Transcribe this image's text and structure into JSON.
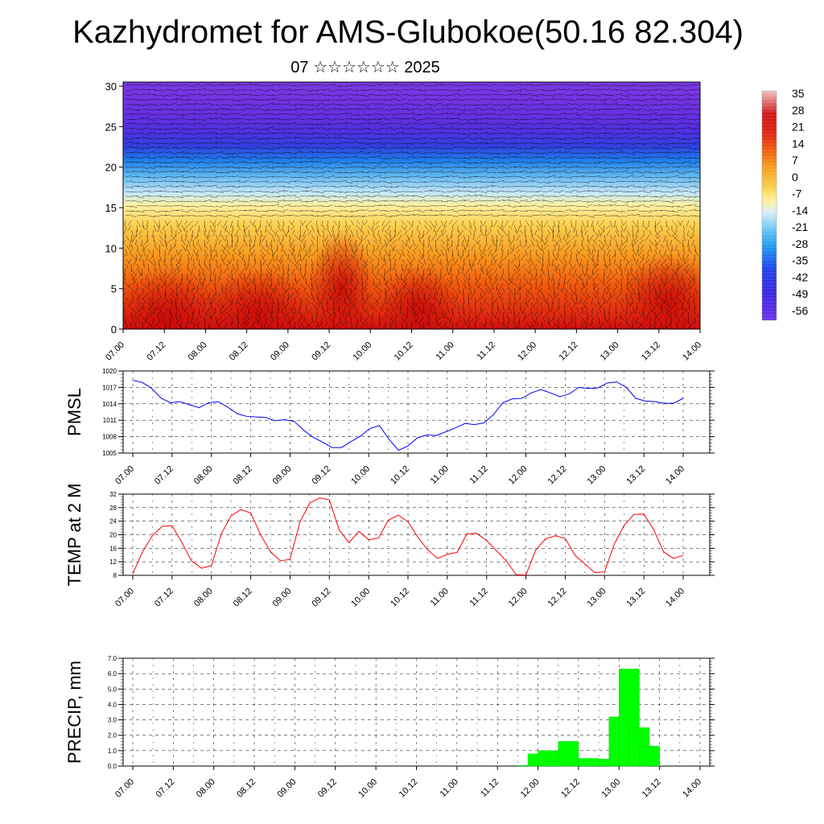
{
  "title": "Kazhydromet for AMS-Glubokoe(50.16 82.304)",
  "subtitle": "07 ☆☆☆☆☆☆ 2025",
  "chart_data": [
    {
      "type": "heatmap",
      "name": "Temperature cross-section with wind barbs",
      "xlabel": "",
      "ylabel": "",
      "x_tick_labels": [
        "07.00",
        "07.12",
        "08.00",
        "08.12",
        "09.00",
        "09.12",
        "10.00",
        "10.12",
        "11.00",
        "11.12",
        "12.00",
        "12.12",
        "13.00",
        "13.12",
        "14.00"
      ],
      "y_ticks": [
        0,
        5,
        10,
        15,
        20,
        25,
        30
      ],
      "ylim": [
        0,
        30.5
      ],
      "colorbar_labels": [
        "35",
        "28",
        "21",
        "14",
        "7",
        "0",
        "-7",
        "-14",
        "-21",
        "-28",
        "-35",
        "-42",
        "-49",
        "-56"
      ]
    },
    {
      "type": "line",
      "ylabel": "PMSL",
      "ylim": [
        1005,
        1020
      ],
      "y_ticks": [
        "1005",
        "1008",
        "1011",
        "1014",
        "1017",
        "1020"
      ],
      "x_tick_labels": [
        "07.00",
        "07.12",
        "08.00",
        "08.12",
        "09.00",
        "09.12",
        "10.00",
        "10.12",
        "11.00",
        "11.12",
        "12.00",
        "12.12",
        "13.00",
        "13.12",
        "14.00"
      ],
      "color": "#0000ff",
      "values": [
        1018.3,
        1017.9,
        1016.8,
        1015.0,
        1014.2,
        1014.4,
        1013.8,
        1013.3,
        1014.2,
        1014.4,
        1013.4,
        1012.2,
        1011.7,
        1011.6,
        1011.5,
        1010.9,
        1011.1,
        1010.8,
        1009.2,
        1007.9,
        1007.0,
        1006.0,
        1006.0,
        1007.1,
        1008.1,
        1009.5,
        1010.0,
        1007.5,
        1005.5,
        1006.3,
        1007.8,
        1008.3,
        1008.2,
        1008.9,
        1009.6,
        1010.4,
        1010.2,
        1010.5,
        1012.0,
        1014.2,
        1014.9,
        1015.0,
        1016.0,
        1016.6,
        1016.0,
        1015.3,
        1015.8,
        1017.0,
        1016.8,
        1016.9,
        1017.8,
        1018.0,
        1017.0,
        1015.0,
        1014.5,
        1014.4,
        1014.1,
        1014.1,
        1015.0
      ]
    },
    {
      "type": "line",
      "ylabel": "TEMP at 2 M",
      "ylim": [
        8,
        32
      ],
      "y_ticks": [
        "8",
        "12",
        "16",
        "20",
        "24",
        "28",
        "32"
      ],
      "x_tick_labels": [
        "07.00",
        "07.12",
        "08.00",
        "08.12",
        "09.00",
        "09.12",
        "10.00",
        "10.12",
        "11.00",
        "11.12",
        "12.00",
        "12.12",
        "13.00",
        "13.12",
        "14.00"
      ],
      "color": "#ff0000",
      "values": [
        8.5,
        15.0,
        19.7,
        22.5,
        22.7,
        17.6,
        12.2,
        10.1,
        10.9,
        20.2,
        25.6,
        27.4,
        26.4,
        20.0,
        15.0,
        12.3,
        12.7,
        23.7,
        29.3,
        30.9,
        30.3,
        21.4,
        17.6,
        21.0,
        18.5,
        19.0,
        24.3,
        25.8,
        23.8,
        19.3,
        15.5,
        13.0,
        14.2,
        14.8,
        20.3,
        20.4,
        18.3,
        15.3,
        12.3,
        8.2,
        8.1,
        15.5,
        18.8,
        19.7,
        18.9,
        13.9,
        11.4,
        8.8,
        9.0,
        17.3,
        22.8,
        26.0,
        26.1,
        21.5,
        15.0,
        13.0,
        13.9
      ]
    },
    {
      "type": "bar",
      "ylabel": "PRECIP, mm",
      "ylim": [
        0,
        7
      ],
      "y_ticks": [
        "0.0",
        "1.0",
        "2.0",
        "3.0",
        "4.0",
        "5.0",
        "6.0",
        "7.0"
      ],
      "x_tick_labels": [
        "07.00",
        "07.12",
        "08.00",
        "08.12",
        "09.00",
        "09.12",
        "10.00",
        "10.12",
        "11.00",
        "11.12",
        "12.00",
        "12.12",
        "13.00",
        "13.12",
        "14.00"
      ],
      "color": "#00ff00",
      "bars": [
        {
          "x": 9.75,
          "value": 0.05
        },
        {
          "x": 10.0,
          "value": 0.8
        },
        {
          "x": 10.25,
          "value": 1.0
        },
        {
          "x": 10.5,
          "value": 0.3
        },
        {
          "x": 10.75,
          "value": 1.6
        },
        {
          "x": 11.0,
          "value": 0.2
        },
        {
          "x": 11.25,
          "value": 0.5
        },
        {
          "x": 11.75,
          "value": 0.45
        },
        {
          "x": 12.0,
          "value": 3.2
        },
        {
          "x": 12.25,
          "value": 6.3
        },
        {
          "x": 12.5,
          "value": 2.5
        },
        {
          "x": 12.75,
          "value": 1.3
        }
      ]
    }
  ]
}
